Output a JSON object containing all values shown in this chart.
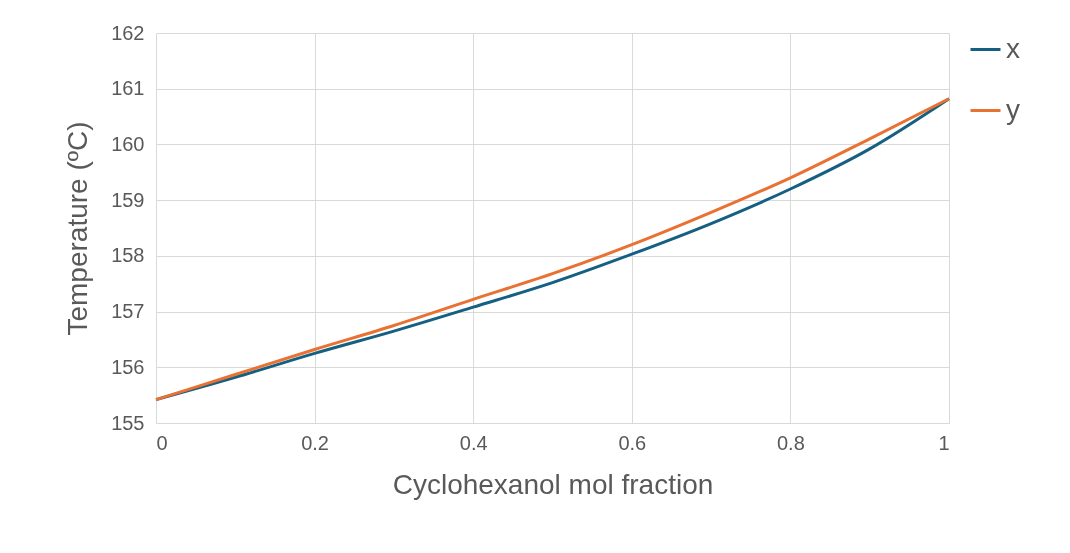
{
  "chart_data": {
    "type": "line",
    "xlabel": "Cyclohexanol mol fraction",
    "ylabel": "Temperature (ºC)",
    "x": [
      0,
      0.1,
      0.2,
      0.3,
      0.4,
      0.5,
      0.6,
      0.7,
      0.8,
      0.9,
      1
    ],
    "series": [
      {
        "name": "x",
        "color": "#156082",
        "values": [
          155.42,
          155.82,
          156.25,
          156.65,
          157.08,
          157.52,
          158.03,
          158.58,
          159.2,
          159.92,
          160.82
        ]
      },
      {
        "name": "y",
        "color": "#e97132",
        "values": [
          155.42,
          155.87,
          156.32,
          156.75,
          157.22,
          157.68,
          158.2,
          158.78,
          159.4,
          160.1,
          160.82
        ]
      }
    ],
    "xlim": [
      0,
      1
    ],
    "xticks": [
      0,
      0.2,
      0.4,
      0.6,
      0.8,
      1
    ],
    "ylim": [
      155,
      162
    ],
    "yticks": [
      155,
      156,
      157,
      158,
      159,
      160,
      161,
      162
    ],
    "grid": true,
    "legend": "right",
    "marker": "none",
    "line_style": "solid"
  }
}
